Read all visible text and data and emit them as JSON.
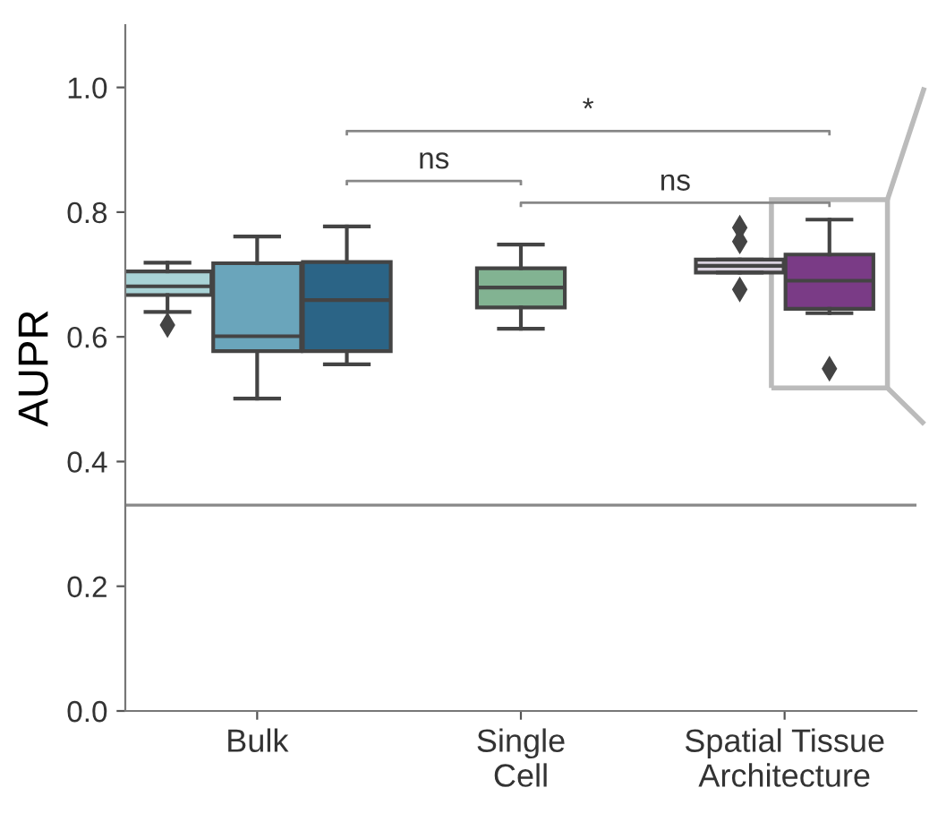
{
  "chart_data": {
    "type": "box",
    "ylabel": "AUPR",
    "categories": [
      "Bulk",
      "Single\nCell",
      "Spatial Tissue\nArchitecture"
    ],
    "ylim": [
      0,
      1.1
    ],
    "yticks": [
      {
        "value": 0,
        "label": "0.0"
      },
      0.2,
      0.4,
      0.6,
      0.8,
      {
        "value": 1,
        "label": "1.0"
      }
    ],
    "series": [
      {
        "color": "#a9d3d6",
        "boxes": [
          {
            "low": 0.64,
            "q1": 0.667,
            "median": 0.681,
            "q3": 0.705,
            "high": 0.719,
            "outliers": [
              0.619
            ]
          },
          null,
          null
        ]
      },
      {
        "color": "#6aa5bb",
        "boxes": [
          {
            "low": 0.501,
            "q1": 0.577,
            "median": 0.601,
            "q3": 0.718,
            "high": 0.761
          },
          null,
          null
        ]
      },
      {
        "color": "#2b6486",
        "boxes": [
          {
            "low": 0.556,
            "q1": 0.577,
            "median": 0.659,
            "q3": 0.72,
            "high": 0.777
          },
          null,
          null
        ]
      },
      {
        "color": "#82b392",
        "boxes": [
          null,
          {
            "low": 0.613,
            "q1": 0.647,
            "median": 0.679,
            "q3": 0.71,
            "high": 0.748
          },
          null
        ]
      },
      {
        "color": "#d9d2de",
        "boxes": [
          null,
          null,
          {
            "low": 0.703,
            "q1": 0.703,
            "median": 0.714,
            "q3": 0.724,
            "high": 0.724,
            "outliers": [
              0.775,
              0.753,
              0.676
            ]
          }
        ]
      },
      {
        "color": "#7a3b86",
        "boxes": [
          null,
          null,
          {
            "low": 0.638,
            "q1": 0.645,
            "median": 0.69,
            "q3": 0.732,
            "high": 0.788,
            "outliers": [
              0.549
            ]
          }
        ]
      }
    ],
    "ref_lines": [
      {
        "axis": "y",
        "value": 0.33,
        "color": "#888888"
      }
    ],
    "annotations": [
      "ns",
      "ns",
      "*"
    ],
    "grid": false
  }
}
